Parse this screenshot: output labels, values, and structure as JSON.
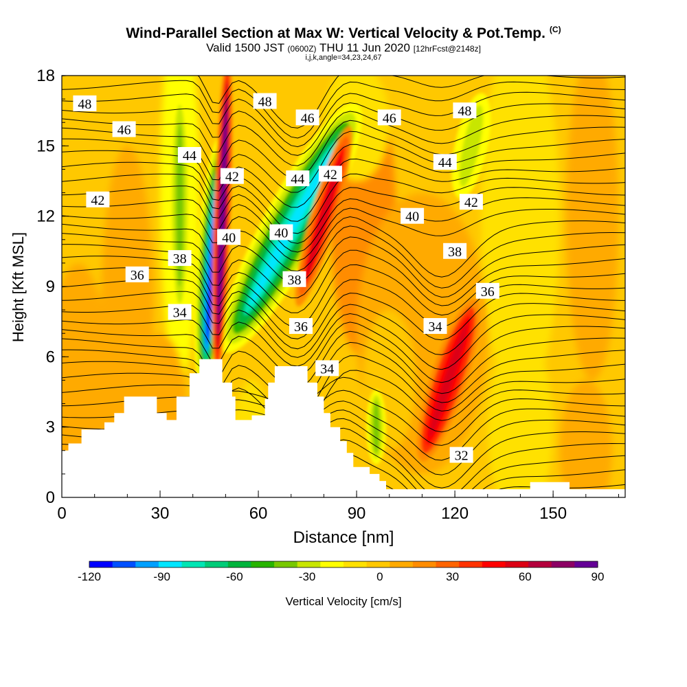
{
  "header": {
    "title": "Wind-Parallel Section at Max W: Vertical Velocity & Pot.Temp.",
    "copyright": "(C)",
    "valid_prefix": "Valid 1500 JST",
    "valid_zulu": "(0600Z)",
    "valid_date": "THU 11 Jun 2020",
    "forecast": "[12hrFcst@2148z]",
    "indices": "i,j,k,angle=34,23,24,67"
  },
  "chart_data": {
    "type": "heatmap",
    "xlabel": "Distance [nm]",
    "ylabel": "Height [Kft MSL]",
    "xlim": [
      0,
      172
    ],
    "ylim": [
      0,
      18
    ],
    "x_ticks": [
      0,
      30,
      60,
      90,
      120,
      150
    ],
    "y_ticks": [
      0,
      3,
      6,
      9,
      12,
      15,
      18
    ],
    "colorbar": {
      "label": "Vertical Velocity [cm/s]",
      "min": -120,
      "max": 90,
      "step": 10,
      "tick_labels": [
        "-120",
        "-90",
        "-60",
        "-30",
        "0",
        "30",
        "60",
        "90"
      ],
      "colors": [
        "#0000ff",
        "#0050ff",
        "#00a0ff",
        "#00e6ff",
        "#00e6b4",
        "#00cc78",
        "#00b43c",
        "#28b400",
        "#78c800",
        "#c8e600",
        "#ffff00",
        "#ffe100",
        "#ffc800",
        "#ffaa00",
        "#ff8c00",
        "#ff6400",
        "#ff3200",
        "#ff0000",
        "#dc0014",
        "#b4003c",
        "#8c0064",
        "#640096"
      ]
    },
    "updrafts": [
      {
        "x": 49,
        "y_range": [
          5.5,
          18
        ],
        "w_max": 90
      },
      {
        "x": 80,
        "y_range": [
          9,
          15.5
        ],
        "w_max": 60
      },
      {
        "x": 118,
        "y_range": [
          1,
          8
        ],
        "w_max": 60
      },
      {
        "x": 98,
        "y_range": [
          9,
          13
        ],
        "w_max": 25
      }
    ],
    "downdrafts": [
      {
        "x": 46,
        "y_range": [
          6,
          12
        ],
        "w_min": -120
      },
      {
        "x": 70,
        "y_range": [
          6,
          16
        ],
        "w_min": -80
      },
      {
        "x": 96,
        "y_range": [
          2,
          4
        ],
        "w_min": -40
      },
      {
        "x": 125,
        "y_range": [
          13,
          17
        ],
        "w_min": -30
      }
    ],
    "theta_contour_labels": [
      {
        "value": "48",
        "x": 7,
        "y": 16.8
      },
      {
        "value": "46",
        "x": 19,
        "y": 15.7
      },
      {
        "value": "44",
        "x": 39,
        "y": 14.6
      },
      {
        "value": "42",
        "x": 11,
        "y": 12.7
      },
      {
        "value": "42",
        "x": 52,
        "y": 13.7
      },
      {
        "value": "40",
        "x": 51,
        "y": 11.1
      },
      {
        "value": "38",
        "x": 36,
        "y": 10.2
      },
      {
        "value": "36",
        "x": 23,
        "y": 9.5
      },
      {
        "value": "34",
        "x": 36,
        "y": 7.9
      },
      {
        "value": "48",
        "x": 62,
        "y": 16.9
      },
      {
        "value": "46",
        "x": 75,
        "y": 16.2
      },
      {
        "value": "44",
        "x": 72,
        "y": 13.6
      },
      {
        "value": "42",
        "x": 82,
        "y": 13.8
      },
      {
        "value": "40",
        "x": 67,
        "y": 11.3
      },
      {
        "value": "38",
        "x": 71,
        "y": 9.3
      },
      {
        "value": "36",
        "x": 73,
        "y": 7.3
      },
      {
        "value": "34",
        "x": 81,
        "y": 5.5
      },
      {
        "value": "46",
        "x": 100,
        "y": 16.2
      },
      {
        "value": "48",
        "x": 123,
        "y": 16.5
      },
      {
        "value": "44",
        "x": 117,
        "y": 14.3
      },
      {
        "value": "42",
        "x": 125,
        "y": 12.6
      },
      {
        "value": "40",
        "x": 107,
        "y": 12.0
      },
      {
        "value": "38",
        "x": 120,
        "y": 10.5
      },
      {
        "value": "36",
        "x": 130,
        "y": 8.8
      },
      {
        "value": "34",
        "x": 114,
        "y": 7.3
      },
      {
        "value": "32",
        "x": 122,
        "y": 1.8
      }
    ],
    "terrain": [
      [
        0,
        2
      ],
      [
        2,
        2
      ],
      [
        2,
        2.3
      ],
      [
        6,
        2.3
      ],
      [
        6,
        2.9
      ],
      [
        13,
        2.9
      ],
      [
        13,
        3.2
      ],
      [
        16,
        3.2
      ],
      [
        16,
        3.6
      ],
      [
        19,
        3.6
      ],
      [
        19,
        4.3
      ],
      [
        29,
        4.3
      ],
      [
        29,
        3.6
      ],
      [
        32,
        3.6
      ],
      [
        32,
        3.3
      ],
      [
        35,
        3.3
      ],
      [
        35,
        4.3
      ],
      [
        39,
        4.3
      ],
      [
        39,
        5.3
      ],
      [
        42,
        5.3
      ],
      [
        42,
        5.9
      ],
      [
        49,
        5.9
      ],
      [
        49,
        4.9
      ],
      [
        52,
        4.9
      ],
      [
        52,
        4.3
      ],
      [
        53,
        4.3
      ],
      [
        53,
        3.3
      ],
      [
        58,
        3.3
      ],
      [
        58,
        3.5
      ],
      [
        62,
        3.5
      ],
      [
        62,
        4.2
      ],
      [
        63,
        4.2
      ],
      [
        63,
        4.9
      ],
      [
        65,
        4.9
      ],
      [
        65,
        5.6
      ],
      [
        75,
        5.6
      ],
      [
        75,
        4.9
      ],
      [
        78,
        4.9
      ],
      [
        78,
        4.3
      ],
      [
        80,
        4.3
      ],
      [
        80,
        3.6
      ],
      [
        82,
        3.6
      ],
      [
        82,
        3.0
      ],
      [
        85,
        3.0
      ],
      [
        85,
        2.4
      ],
      [
        87,
        2.4
      ],
      [
        87,
        1.9
      ],
      [
        89,
        1.9
      ],
      [
        89,
        1.3
      ],
      [
        94,
        1.3
      ],
      [
        94,
        1.0
      ],
      [
        97,
        1.0
      ],
      [
        97,
        0.7
      ],
      [
        99,
        0.7
      ],
      [
        99,
        0.35
      ],
      [
        143,
        0.35
      ],
      [
        143,
        0.65
      ],
      [
        155,
        0.65
      ],
      [
        155,
        0.35
      ],
      [
        172,
        0.35
      ]
    ]
  }
}
